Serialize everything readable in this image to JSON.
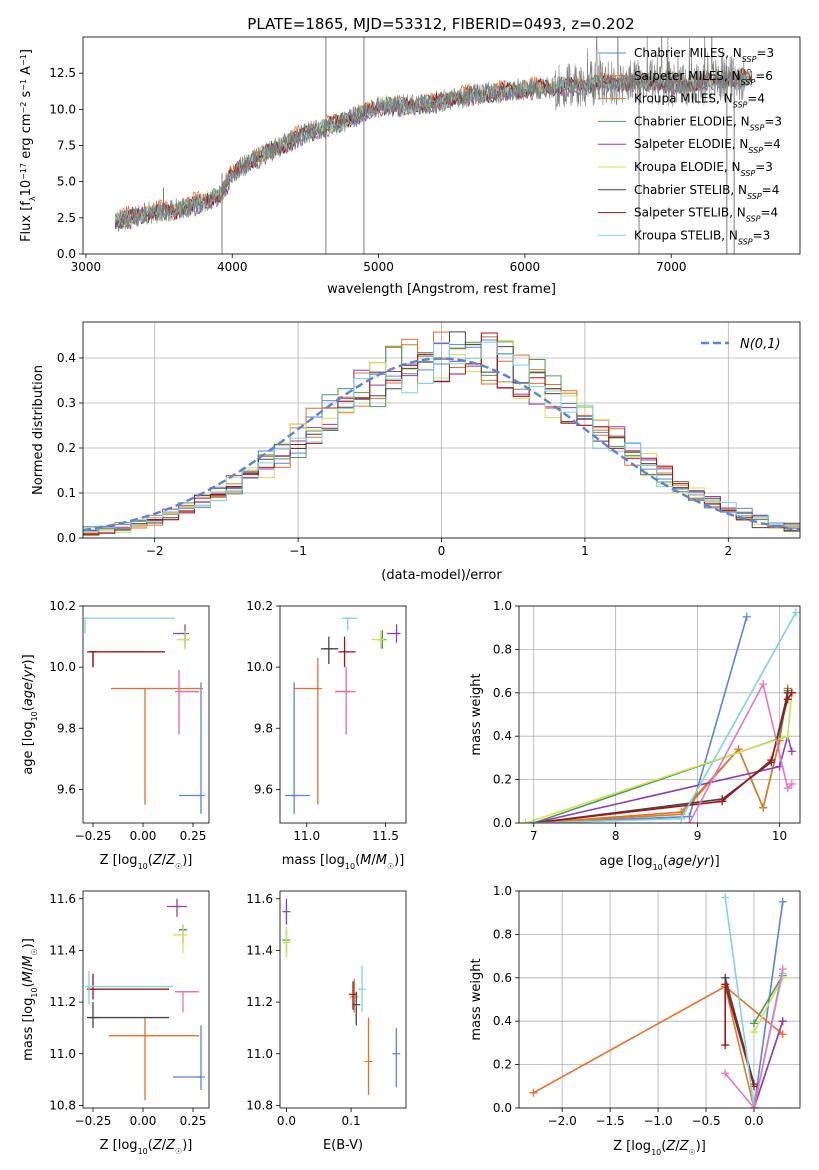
{
  "figure": {
    "title": "PLATE=1865, MJD=53312, FIBERID=0493, z=0.202"
  },
  "series_styles": [
    {
      "name": "Chabrier MILES",
      "nssp": "3",
      "color": "#5b84d6"
    },
    {
      "name": "Salpeter MILES",
      "nssp": "6",
      "color": "#e8702a"
    },
    {
      "name": "Kroupa MILES",
      "nssp": "4",
      "color": "#d17f2a"
    },
    {
      "name": "Chabrier ELODIE",
      "nssp": "3",
      "color": "#4d9a5a"
    },
    {
      "name": "Salpeter ELODIE",
      "nssp": "4",
      "color": "#8e3fb0"
    },
    {
      "name": "Kroupa ELODIE",
      "nssp": "3",
      "color": "#cfe05a"
    },
    {
      "name": "Chabrier STELIB",
      "nssp": "4",
      "color": "#444444"
    },
    {
      "name": "Salpeter STELIB",
      "nssp": "4",
      "color": "#a3151b"
    },
    {
      "name": "Kroupa STELIB",
      "nssp": "3",
      "color": "#7fd4dd"
    }
  ],
  "chart_data": [
    {
      "id": "spectrum",
      "type": "line",
      "xlabel": "wavelength [Angstrom, rest frame]",
      "ylabel": "Flux [f_λ 10^-17 erg cm^-2 s^-1 A^-1]",
      "xlim": [
        2980,
        7880
      ],
      "ylim": [
        0,
        15
      ],
      "xticks": [
        3000,
        4000,
        5000,
        6000,
        7000
      ],
      "yticks": [
        0.0,
        2.5,
        5.0,
        7.5,
        10.0,
        12.5
      ],
      "grid": false,
      "legend": "right",
      "data_color": "#808080",
      "continuum": {
        "x": [
          3200,
          3400,
          3600,
          3800,
          3930,
          4000,
          4200,
          4500,
          4800,
          5000,
          5300,
          5600,
          5900,
          6200,
          6500,
          6800,
          7100,
          7300,
          7500
        ],
        "y": [
          2.2,
          2.8,
          3.0,
          3.6,
          4.2,
          5.6,
          6.8,
          8.3,
          9.3,
          10.2,
          10.3,
          10.9,
          11.3,
          11.5,
          11.8,
          11.9,
          11.7,
          12.0,
          12.2
        ]
      }
    },
    {
      "id": "residual-hist",
      "type": "bar",
      "xlabel": "(data-model)/error",
      "ylabel": "Normed distribution",
      "xlim": [
        -2.5,
        2.5
      ],
      "ylim": [
        0,
        0.48
      ],
      "xticks": [
        -2,
        -1,
        0,
        1,
        2
      ],
      "yticks": [
        0.0,
        0.1,
        0.2,
        0.3,
        0.4
      ],
      "grid": true,
      "legend": "top-right",
      "legend_label": "N(0,1)",
      "bins": 45
    },
    {
      "id": "age-vs-z",
      "type": "scatter",
      "xlabel": "Z [log10(Z/Z☉)]",
      "ylabel": "age [log10(age/yr)]",
      "xlim": [
        -0.3,
        0.33
      ],
      "ylim": [
        9.49,
        10.2
      ],
      "xticks": [
        -0.25,
        0.0,
        0.25
      ],
      "yticks": [
        9.6,
        9.8,
        10.0,
        10.2
      ],
      "points": [
        {
          "x": 0.29,
          "y": 9.58,
          "xerr": [
            0.11,
            0.0
          ],
          "yerr": [
            0.06,
            0.37
          ],
          "c": 0
        },
        {
          "x": 0.01,
          "y": 9.93,
          "xerr": [
            0.17,
            0.29
          ],
          "yerr": [
            0.38,
            0.0
          ],
          "c": 1
        },
        {
          "x": 0.18,
          "y": 9.92,
          "xerr": [
            0.0,
            0.1
          ],
          "yerr": [
            0.14,
            0.07
          ],
          "c": 2
        },
        {
          "x": 0.21,
          "y": 10.09,
          "xerr": [
            0.0,
            0.0
          ],
          "yerr": [
            0.03,
            0.03
          ],
          "c": 3
        },
        {
          "x": 0.21,
          "y": 10.11,
          "xerr": [
            0.06,
            0.0
          ],
          "yerr": [
            0.03,
            0.03
          ],
          "c": 4
        },
        {
          "x": 0.21,
          "y": 10.09,
          "xerr": [
            0.04,
            0.0
          ],
          "yerr": [
            0.03,
            0.03
          ],
          "c": 5
        },
        {
          "x": -0.25,
          "y": 10.05,
          "xerr": [
            0.03,
            0.36
          ],
          "yerr": [
            0.05,
            0.0
          ],
          "c": 6
        },
        {
          "x": -0.25,
          "y": 10.05,
          "xerr": [
            0.02,
            0.36
          ],
          "yerr": [
            0.05,
            0.0
          ],
          "c": 7
        },
        {
          "x": -0.29,
          "y": 10.16,
          "xerr": [
            0.0,
            0.45
          ],
          "yerr": [
            0.05,
            0.0
          ],
          "c": 8
        }
      ]
    },
    {
      "id": "age-vs-mass",
      "type": "scatter",
      "xlabel": "mass [log10(M/M☉)]",
      "ylabel": "",
      "xlim": [
        10.83,
        11.63
      ],
      "ylim": [
        9.49,
        10.2
      ],
      "xticks": [
        11.0,
        11.5
      ],
      "yticks": [
        9.6,
        9.8,
        10.0,
        10.2
      ],
      "points": [
        {
          "x": 10.92,
          "y": 9.58,
          "xerr": [
            0.06,
            0.1
          ],
          "yerr": [
            0.06,
            0.37
          ],
          "c": 0
        },
        {
          "x": 11.07,
          "y": 9.93,
          "xerr": [
            0.15,
            0.0
          ],
          "yerr": [
            0.38,
            0.1
          ],
          "c": 1
        },
        {
          "x": 11.25,
          "y": 9.92,
          "xerr": [
            0.07,
            0.06
          ],
          "yerr": [
            0.14,
            0.07
          ],
          "c": 2
        },
        {
          "x": 11.48,
          "y": 10.09,
          "xerr": [
            0.03,
            0.02
          ],
          "yerr": [
            0.03,
            0.03
          ],
          "c": 3
        },
        {
          "x": 11.57,
          "y": 10.11,
          "xerr": [
            0.06,
            0.02
          ],
          "yerr": [
            0.03,
            0.03
          ],
          "c": 4
        },
        {
          "x": 11.47,
          "y": 10.09,
          "xerr": [
            0.06,
            0.02
          ],
          "yerr": [
            0.03,
            0.03
          ],
          "c": 5
        },
        {
          "x": 11.14,
          "y": 10.06,
          "xerr": [
            0.05,
            0.06
          ],
          "yerr": [
            0.05,
            0.04
          ],
          "c": 6
        },
        {
          "x": 11.24,
          "y": 10.05,
          "xerr": [
            0.04,
            0.07
          ],
          "yerr": [
            0.05,
            0.05
          ],
          "c": 7
        },
        {
          "x": 11.26,
          "y": 10.16,
          "xerr": [
            0.04,
            0.06
          ],
          "yerr": [
            0.04,
            0.0
          ],
          "c": 8
        }
      ]
    },
    {
      "id": "massweight-vs-age",
      "type": "line",
      "xlabel": "age [log10(age/yr)]",
      "ylabel": "mass weight",
      "xlim": [
        6.82,
        10.25
      ],
      "ylim": [
        0,
        1.0
      ],
      "xticks": [
        7,
        8,
        9,
        10
      ],
      "yticks": [
        0.0,
        0.2,
        0.4,
        0.6,
        0.8,
        1.0
      ],
      "grid": true,
      "series": [
        {
          "c": 0,
          "x": [
            7.0,
            8.9,
            9.6
          ],
          "y": [
            0.0,
            0.03,
            0.95
          ]
        },
        {
          "c": 1,
          "x": [
            7.0,
            8.8,
            9.5,
            9.8,
            10.0,
            10.1
          ],
          "y": [
            0.0,
            0.05,
            0.34,
            0.07,
            0.38,
            0.62
          ]
        },
        {
          "c": 2,
          "x": [
            7.0,
            8.8,
            9.5,
            9.8,
            10.0,
            10.1
          ],
          "y": [
            0.0,
            0.04,
            0.34,
            0.07,
            0.38,
            0.61
          ]
        },
        {
          "c": 3,
          "x": [
            7.0,
            10.0,
            10.1
          ],
          "y": [
            0.0,
            0.39,
            0.61
          ]
        },
        {
          "c": 4,
          "x": [
            7.0,
            10.0,
            10.1,
            10.15
          ],
          "y": [
            0.0,
            0.26,
            0.4,
            0.33
          ]
        },
        {
          "c": 5,
          "x": [
            6.9,
            10.1,
            10.15
          ],
          "y": [
            0.0,
            0.4,
            0.6
          ]
        },
        {
          "c": 6,
          "x": [
            7.0,
            9.3,
            9.9,
            10.1
          ],
          "y": [
            0.0,
            0.11,
            0.28,
            0.6
          ]
        },
        {
          "c": 7,
          "x": [
            7.0,
            9.3,
            9.9,
            10.1,
            10.15
          ],
          "y": [
            0.0,
            0.1,
            0.29,
            0.57,
            0.6
          ]
        },
        {
          "c": 8,
          "x": [
            7.0,
            8.8,
            10.2
          ],
          "y": [
            0.0,
            0.02,
            0.97
          ]
        }
      ],
      "pink_series": {
        "color": "#e377c2",
        "x": [
          8.9,
          9.8,
          10.1,
          10.15
        ],
        "y": [
          0.0,
          0.64,
          0.16,
          0.18
        ]
      }
    },
    {
      "id": "mass-vs-z",
      "type": "scatter",
      "xlabel": "Z [log10(Z/Z☉)]",
      "ylabel": "mass [log10(M/M☉)]",
      "xlim": [
        -0.3,
        0.33
      ],
      "ylim": [
        10.79,
        11.63
      ],
      "xticks": [
        -0.25,
        0.0,
        0.25
      ],
      "yticks": [
        10.8,
        11.0,
        11.2,
        11.4,
        11.6
      ],
      "points": [
        {
          "x": 0.29,
          "y": 10.91,
          "xerr": [
            0.14,
            0.0
          ],
          "yerr": [
            0.05,
            0.2
          ],
          "c": 0
        },
        {
          "x": 0.01,
          "y": 11.07,
          "xerr": [
            0.18,
            0.27
          ],
          "yerr": [
            0.25,
            0.07
          ],
          "c": 1
        },
        {
          "x": 0.2,
          "y": 11.24,
          "xerr": [
            0.03,
            0.07
          ],
          "yerr": [
            0.0,
            0.0
          ],
          "c": 2
        },
        {
          "x": 0.2,
          "y": 11.48,
          "xerr": [
            0.02,
            0.02
          ],
          "yerr": [
            0.05,
            0.02
          ],
          "c": 3
        },
        {
          "x": 0.17,
          "y": 11.57,
          "xerr": [
            0.05,
            0.05
          ],
          "yerr": [
            0.04,
            0.03
          ],
          "c": 4
        },
        {
          "x": 0.2,
          "y": 11.46,
          "xerr": [
            0.05,
            0.0
          ],
          "yerr": [
            0.07,
            0.04
          ],
          "c": 5
        },
        {
          "x": -0.25,
          "y": 11.14,
          "xerr": [
            0.03,
            0.38
          ],
          "yerr": [
            0.04,
            0.06
          ],
          "c": 6
        },
        {
          "x": -0.25,
          "y": 11.25,
          "xerr": [
            0.03,
            0.38
          ],
          "yerr": [
            0.04,
            0.06
          ],
          "c": 7
        },
        {
          "x": -0.27,
          "y": 11.26,
          "xerr": [
            0.02,
            0.42
          ],
          "yerr": [
            0.07,
            0.06
          ],
          "c": 8
        }
      ]
    },
    {
      "id": "mass-vs-ebv",
      "type": "scatter",
      "xlabel": "E(B-V)",
      "ylabel": "",
      "xlim": [
        -0.01,
        0.185
      ],
      "ylim": [
        10.79,
        11.63
      ],
      "xticks": [
        0.0,
        0.1
      ],
      "yticks": [
        10.8,
        11.0,
        11.2,
        11.4,
        11.6
      ],
      "points": [
        {
          "x": 0.17,
          "y": 11.0,
          "yerr": [
            0.13,
            0.1
          ],
          "c": 0
        },
        {
          "x": 0.127,
          "y": 10.97,
          "yerr": [
            0.13,
            0.17
          ],
          "c": 1
        },
        {
          "x": 0.105,
          "y": 11.22,
          "yerr": [
            0.06,
            0.07
          ],
          "c": 2
        },
        {
          "x": 0.0,
          "y": 11.44,
          "yerr": [
            0.05,
            0.04
          ],
          "c": 3
        },
        {
          "x": 0.0,
          "y": 11.55,
          "yerr": [
            0.05,
            0.05
          ],
          "c": 4
        },
        {
          "x": 0.0,
          "y": 11.43,
          "yerr": [
            0.06,
            0.06
          ],
          "c": 5
        },
        {
          "x": 0.108,
          "y": 11.19,
          "yerr": [
            0.08,
            0.05
          ],
          "c": 6
        },
        {
          "x": 0.103,
          "y": 11.23,
          "yerr": [
            0.06,
            0.05
          ],
          "c": 7
        },
        {
          "x": 0.117,
          "y": 11.25,
          "yerr": [
            0.09,
            0.09
          ],
          "c": 8
        }
      ]
    },
    {
      "id": "massweight-vs-z",
      "type": "line",
      "xlabel": "Z [log10(Z/Z☉)]",
      "ylabel": "mass weight",
      "xlim": [
        -2.45,
        0.48
      ],
      "ylim": [
        0,
        1.0
      ],
      "xticks": [
        -2.0,
        -1.5,
        -1.0,
        -0.5,
        0.0
      ],
      "yticks": [
        0.0,
        0.2,
        0.4,
        0.6,
        0.8,
        1.0
      ],
      "grid": true,
      "series": [
        {
          "c": 0,
          "x": [
            0.0,
            0.3
          ],
          "y": [
            0.0,
            0.95
          ]
        },
        {
          "c": 1,
          "x": [
            -2.3,
            -0.3,
            0.3
          ],
          "y": [
            0.07,
            0.56,
            0.34
          ]
        },
        {
          "c": 2,
          "x": [
            -0.3,
            0.0,
            0.3
          ],
          "y": [
            0.56,
            0.0,
            0.4
          ]
        },
        {
          "c": 3,
          "x": [
            0.0,
            0.3
          ],
          "y": [
            0.39,
            0.61
          ]
        },
        {
          "c": 4,
          "x": [
            0.0,
            0.3
          ],
          "y": [
            0.0,
            0.4
          ]
        },
        {
          "c": 5,
          "x": [
            0.0,
            0.3
          ],
          "y": [
            0.35,
            0.6
          ]
        },
        {
          "c": 6,
          "x": [
            -0.3,
            0.0
          ],
          "y": [
            0.6,
            0.11
          ]
        },
        {
          "c": 7,
          "x": [
            -0.3,
            -0.3,
            0.0
          ],
          "y": [
            0.29,
            0.57,
            0.1
          ]
        },
        {
          "c": 8,
          "x": [
            -0.3,
            0.0,
            0.3
          ],
          "y": [
            0.97,
            0.0,
            0.62
          ]
        }
      ],
      "pink_series": {
        "color": "#e377c2",
        "x": [
          -0.3,
          0.0,
          0.3
        ],
        "y": [
          0.16,
          0.0,
          0.64
        ]
      }
    }
  ]
}
